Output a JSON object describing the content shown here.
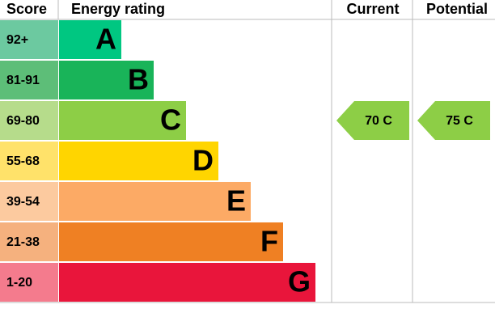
{
  "header": {
    "score": "Score",
    "energy_rating": "Energy rating",
    "current": "Current",
    "potential": "Potential"
  },
  "bands": [
    {
      "score": "92+",
      "letter": "A"
    },
    {
      "score": "81-91",
      "letter": "B"
    },
    {
      "score": "69-80",
      "letter": "C"
    },
    {
      "score": "55-68",
      "letter": "D"
    },
    {
      "score": "39-54",
      "letter": "E"
    },
    {
      "score": "21-38",
      "letter": "F"
    },
    {
      "score": "1-20",
      "letter": "G"
    }
  ],
  "current": {
    "label": "70 C"
  },
  "potential": {
    "label": "75 C"
  }
}
